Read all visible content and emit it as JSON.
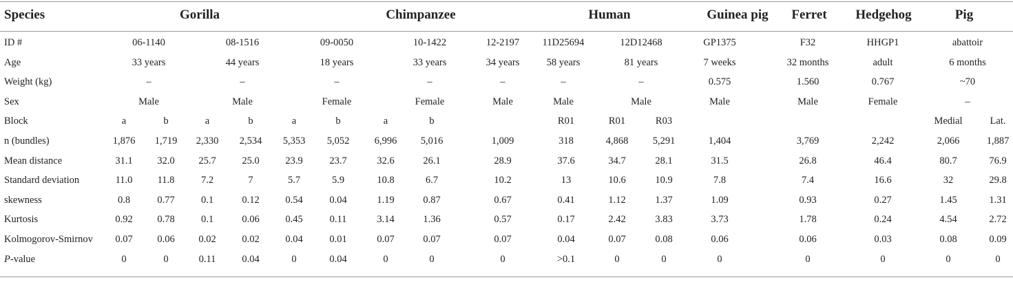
{
  "headers": [
    "Species",
    "Gorilla",
    "Chimpanzee",
    "Human",
    "Guinea pig",
    "Ferret",
    "Hedgehog",
    "Pig"
  ],
  "rows": [
    {
      "label": "ID #",
      "cells": [
        {
          "col": "G1",
          "v": "06-1140"
        },
        {
          "col": "G2",
          "v": "08-1516"
        },
        {
          "col": "C1",
          "v": "09-0050"
        },
        {
          "col": "C2",
          "v": "10-1422"
        },
        {
          "col": "C3",
          "v": "12-2197"
        },
        {
          "col": "H1",
          "v": "11D25694"
        },
        {
          "col": "H2",
          "v": "12D12468"
        },
        {
          "col": "GP",
          "v": "GP1375"
        },
        {
          "col": "FE",
          "v": "F32"
        },
        {
          "col": "HE",
          "v": "HHGP1"
        },
        {
          "col": "PG",
          "v": "abattoir"
        }
      ]
    },
    {
      "label": "Age",
      "cells": [
        {
          "col": "G1",
          "v": "33 years"
        },
        {
          "col": "G2",
          "v": "44 years"
        },
        {
          "col": "C1",
          "v": "18 years"
        },
        {
          "col": "C2",
          "v": "33 years"
        },
        {
          "col": "C3",
          "v": "34 years"
        },
        {
          "col": "H1",
          "v": "58 years"
        },
        {
          "col": "H2",
          "v": "81 years"
        },
        {
          "col": "GP",
          "v": "7 weeks"
        },
        {
          "col": "FE",
          "v": "32 months"
        },
        {
          "col": "HE",
          "v": "adult"
        },
        {
          "col": "PG",
          "v": "6 months"
        }
      ]
    },
    {
      "label": "Weight (kg)",
      "cells": [
        {
          "col": "G1",
          "v": "–"
        },
        {
          "col": "G2",
          "v": "–"
        },
        {
          "col": "C1",
          "v": "–"
        },
        {
          "col": "C2",
          "v": "–"
        },
        {
          "col": "C3",
          "v": "–"
        },
        {
          "col": "H1",
          "v": "–"
        },
        {
          "col": "H2",
          "v": "–"
        },
        {
          "col": "GP",
          "v": "0.575"
        },
        {
          "col": "FE",
          "v": "1.560"
        },
        {
          "col": "HE",
          "v": "0.767"
        },
        {
          "col": "PG",
          "v": "~70"
        }
      ]
    },
    {
      "label": "Sex",
      "cells": [
        {
          "col": "G1",
          "v": "Male"
        },
        {
          "col": "G2",
          "v": "Male"
        },
        {
          "col": "C1",
          "v": "Female"
        },
        {
          "col": "C2",
          "v": "Female"
        },
        {
          "col": "C3",
          "v": "Male"
        },
        {
          "col": "H1",
          "v": "Male"
        },
        {
          "col": "H2",
          "v": "Male"
        },
        {
          "col": "GP",
          "v": "Male"
        },
        {
          "col": "FE",
          "v": "Male"
        },
        {
          "col": "HE",
          "v": "Female"
        },
        {
          "col": "PG",
          "v": "–"
        }
      ]
    },
    {
      "label": "Block",
      "cells": [
        {
          "col": "c1",
          "v": "a"
        },
        {
          "col": "c2",
          "v": "b"
        },
        {
          "col": "c3",
          "v": "a"
        },
        {
          "col": "c4",
          "v": "b"
        },
        {
          "col": "c5",
          "v": "a"
        },
        {
          "col": "c6",
          "v": "b"
        },
        {
          "col": "c7",
          "v": "a"
        },
        {
          "col": "c8",
          "v": "b"
        },
        {
          "col": "c10",
          "v": "R01"
        },
        {
          "col": "c11",
          "v": "R01"
        },
        {
          "col": "c12",
          "v": "R03"
        },
        {
          "col": "c16",
          "v": "Medial"
        },
        {
          "col": "c17",
          "v": "Lat."
        }
      ]
    },
    {
      "label": "n (bundles)",
      "values": [
        "1,876",
        "1,719",
        "2,330",
        "2,534",
        "5,353",
        "5,052",
        "6,996",
        "5,016",
        "1,009",
        "318",
        "4,868",
        "5,291",
        "1,404",
        "3,769",
        "2,242",
        "2,066",
        "1,887"
      ]
    },
    {
      "label": "Mean distance",
      "values": [
        "31.1",
        "32.0",
        "25.7",
        "25.0",
        "23.9",
        "23.7",
        "32.6",
        "26.1",
        "28.9",
        "37.6",
        "34.7",
        "28.1",
        "31.5",
        "26.8",
        "46.4",
        "80.7",
        "76.9"
      ]
    },
    {
      "label": "Standard deviation",
      "values": [
        "11.0",
        "11.8",
        "7.2",
        "7",
        "5.7",
        "5.9",
        "10.8",
        "6.7",
        "10.2",
        "13",
        "10.6",
        "10.9",
        "7.8",
        "7.4",
        "16.6",
        "32",
        "29.8"
      ]
    },
    {
      "label": "skewness",
      "values": [
        "0.8",
        "0.77",
        "0.1",
        "0.12",
        "0.54",
        "0.04",
        "1.19",
        "0.87",
        "0.67",
        "0.41",
        "1.12",
        "1.37",
        "1.09",
        "0.93",
        "0.27",
        "1.45",
        "1.31"
      ]
    },
    {
      "label": "Kurtosis",
      "values": [
        "0.92",
        "0.78",
        "0.1",
        "0.06",
        "0.45",
        "0.11",
        "3.14",
        "1.36",
        "0.57",
        "0.17",
        "2.42",
        "3.83",
        "3.73",
        "1.78",
        "0.24",
        "4.54",
        "2.72"
      ]
    },
    {
      "label": "Kolmogorov-Smirnov",
      "values": [
        "0.07",
        "0.06",
        "0.02",
        "0.02",
        "0.04",
        "0.01",
        "0.07",
        "0.07",
        "0.07",
        "0.04",
        "0.07",
        "0.08",
        "0.06",
        "0.06",
        "0.03",
        "0.08",
        "0.09"
      ]
    },
    {
      "label_italic": "P",
      "label": "-value",
      "values": [
        "0",
        "0",
        "0.11",
        "0.04",
        "0",
        "0.04",
        "0",
        "0",
        "0",
        "&gt;0.1",
        "0",
        "0",
        "0",
        "0",
        "0",
        "0",
        "0"
      ]
    }
  ]
}
